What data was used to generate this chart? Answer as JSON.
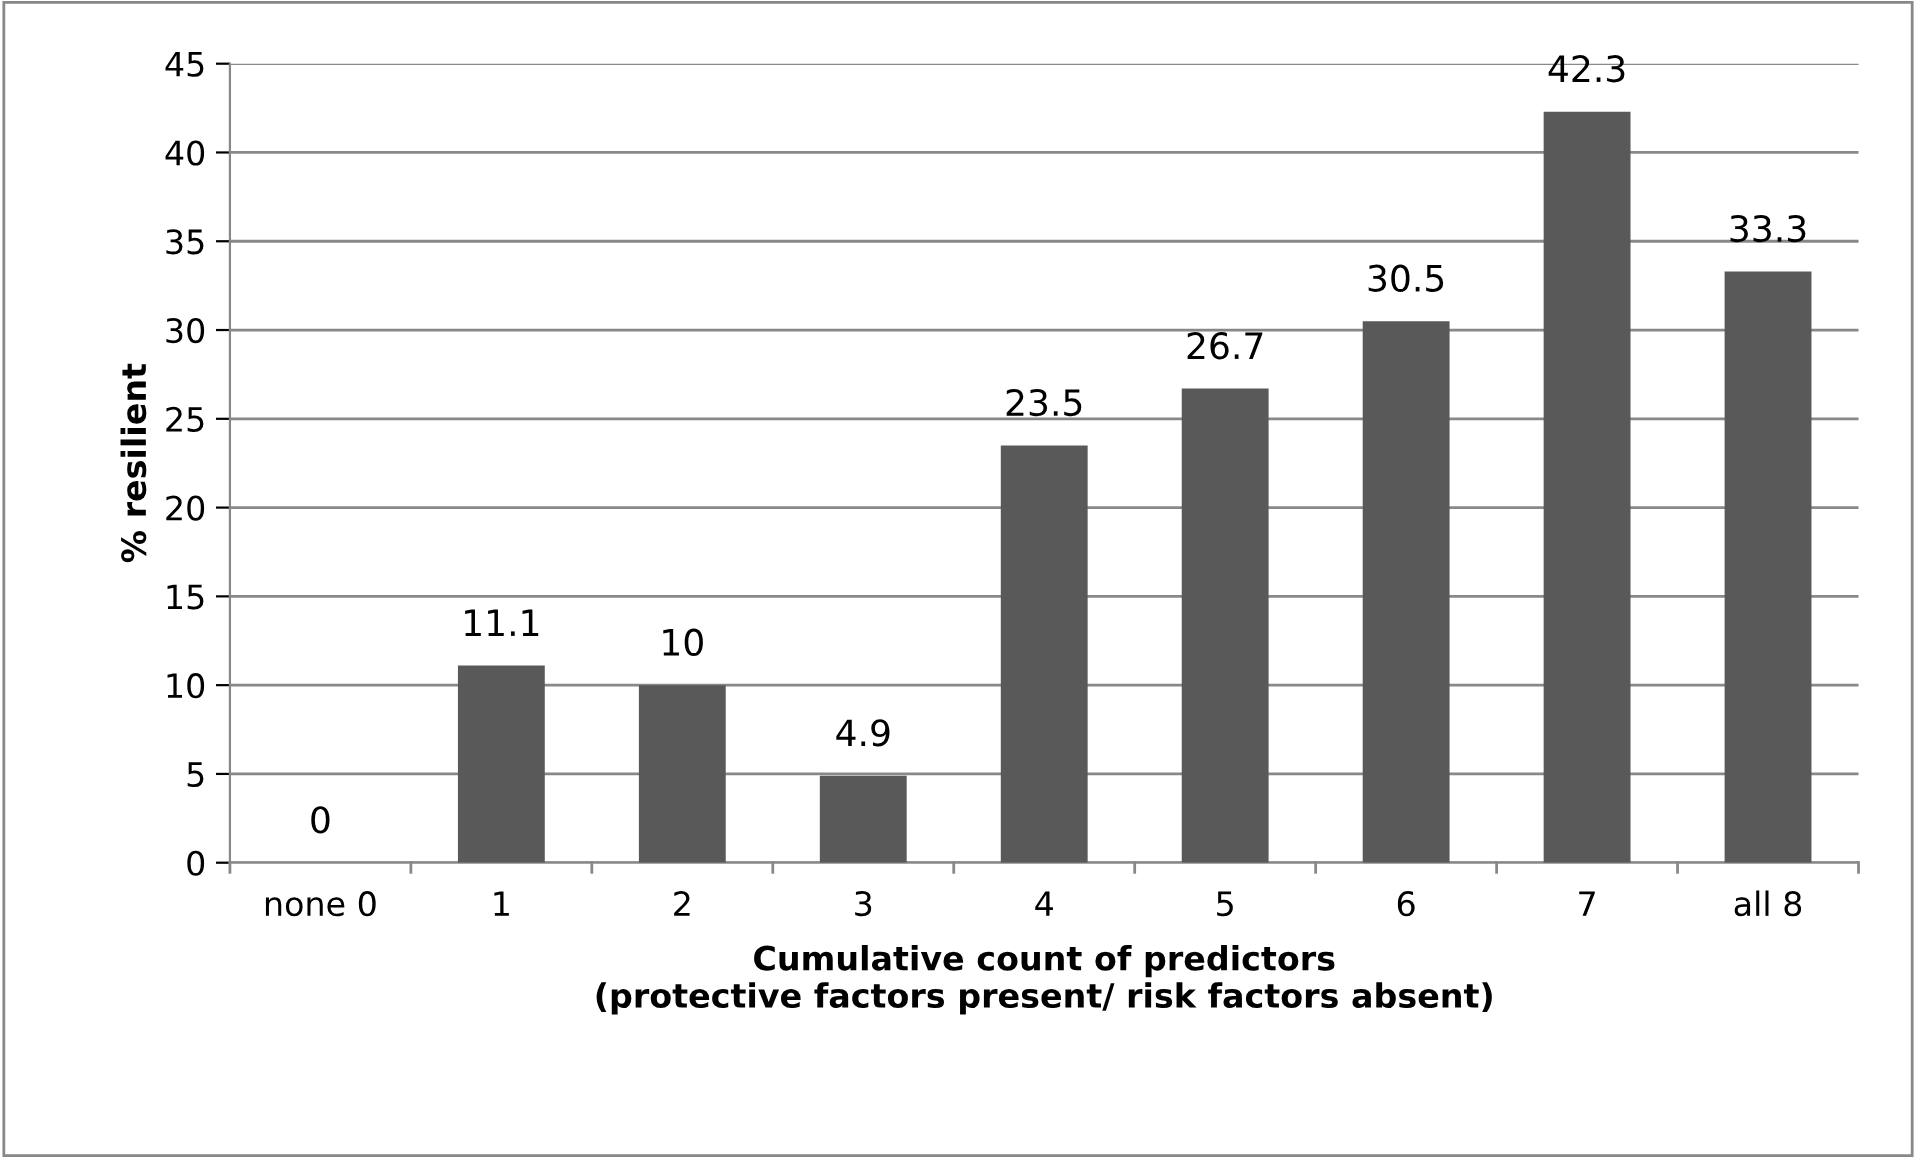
{
  "chart_data": {
    "type": "bar",
    "categories": [
      "none 0",
      "1",
      "2",
      "3",
      "4",
      "5",
      "6",
      "7",
      "all 8"
    ],
    "values": [
      0,
      11.1,
      10,
      4.9,
      23.5,
      26.7,
      30.5,
      42.3,
      33.3
    ],
    "color": "#595959",
    "xlabel": "Cumulative count of predictors\n(protective factors present/ risk factors absent)",
    "ylabel": "% resilient",
    "ylim": [
      0,
      45
    ],
    "yticks": [
      0,
      5,
      10,
      15,
      20,
      25,
      30,
      35,
      40,
      45
    ],
    "grid": "y",
    "data_labels": true
  }
}
